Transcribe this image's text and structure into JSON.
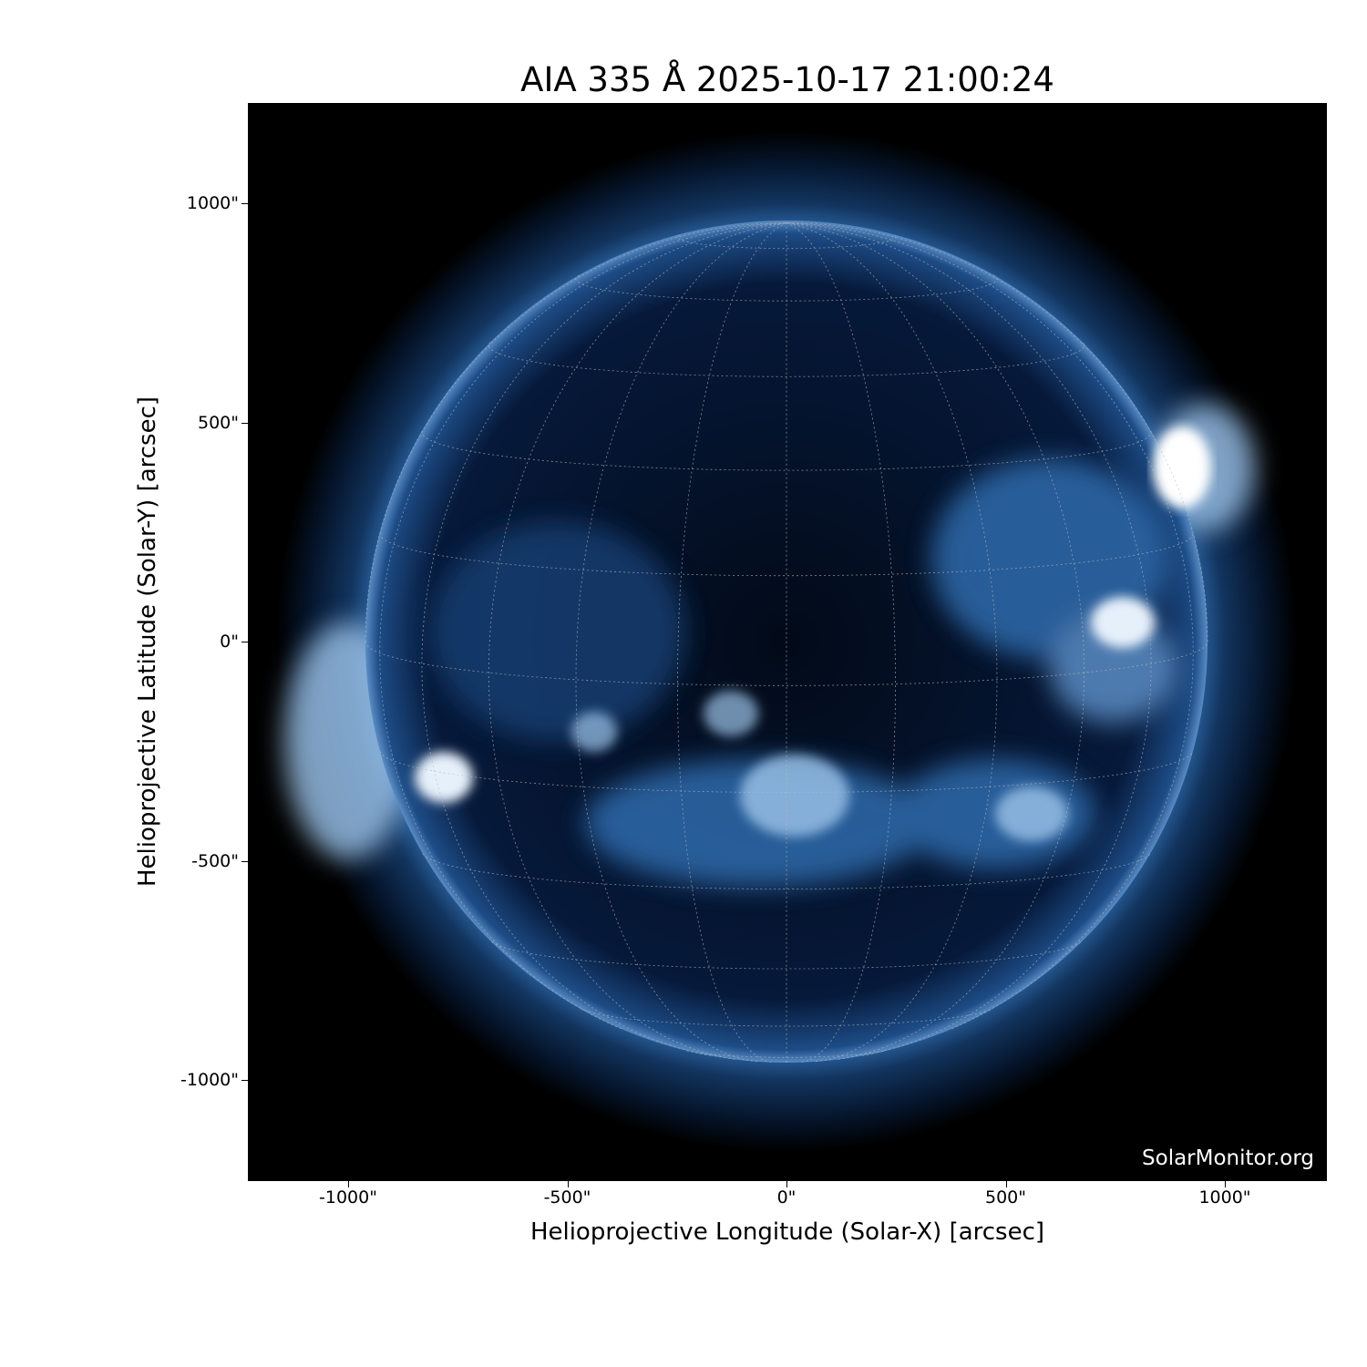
{
  "title": "AIA 335 Å 2025-10-17 21:00:24",
  "watermark": "SolarMonitor.org",
  "x_axis": {
    "label": "Helioprojective Longitude (Solar-X) [arcsec]",
    "ticks": [
      "-1000\"",
      "-500\"",
      "0\"",
      "500\"",
      "1000\""
    ],
    "tick_values": [
      -1000,
      -500,
      0,
      500,
      1000
    ],
    "range": [
      -1230,
      1230
    ]
  },
  "y_axis": {
    "label": "Helioprojective Latitude (Solar-Y) [arcsec]",
    "ticks": [
      "1000\"",
      "500\"",
      "0\"",
      "-500\"",
      "-1000\""
    ],
    "tick_values": [
      1000,
      500,
      0,
      -500,
      -1000
    ],
    "range": [
      -1230,
      1230
    ]
  },
  "image": {
    "instrument": "AIA",
    "wavelength": "335 Å",
    "colormap_colors": [
      "#000000",
      "#0a2a5a",
      "#2f6aab",
      "#9cc3e8",
      "#ffffff"
    ],
    "solar_radius_arcsec": 960,
    "grid_spacing_deg": 15
  }
}
